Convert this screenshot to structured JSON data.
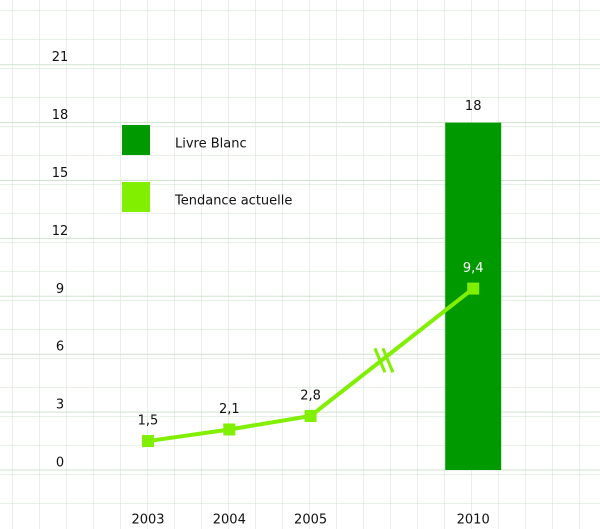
{
  "chart_data": {
    "type": "bar-line",
    "categories": [
      "2003",
      "2004",
      "2005",
      "2010"
    ],
    "axis_break": true,
    "series": [
      {
        "name": "Livre Blanc",
        "type": "bar",
        "color": "#009900",
        "values": [
          null,
          null,
          null,
          18
        ]
      },
      {
        "name": "Tendance actuelle",
        "type": "line",
        "color": "#80f000",
        "values": [
          1.5,
          2.1,
          2.8,
          9.4
        ],
        "value_labels": [
          "1,5",
          "2,1",
          "2,8",
          "9,4"
        ]
      }
    ],
    "ylim": [
      0,
      21
    ],
    "yticks": [
      0,
      3,
      6,
      9,
      12,
      15,
      18,
      21
    ],
    "grid": true
  }
}
